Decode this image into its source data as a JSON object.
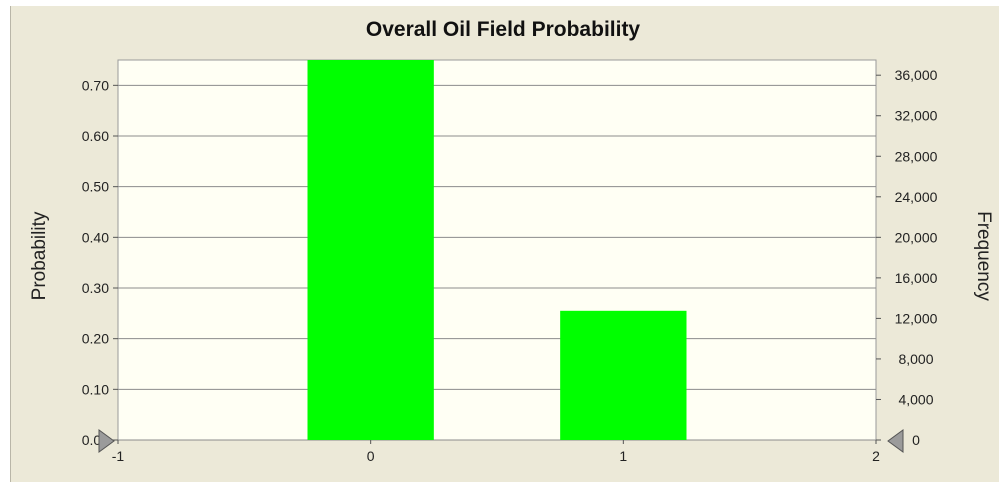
{
  "chart_data": {
    "type": "bar",
    "title": "Overall Oil Field Probability",
    "xlabel": "",
    "ylabel": "Probability",
    "y2label": "Frequency",
    "x": [
      0,
      1
    ],
    "values": [
      0.75,
      0.255
    ],
    "xlim": [
      -1,
      2
    ],
    "ylim": [
      0,
      0.75
    ],
    "y2lim": [
      0,
      37500
    ],
    "x_ticks": [
      "-1",
      "0",
      "1",
      "2"
    ],
    "y_ticks": [
      "0.00",
      "0.10",
      "0.20",
      "0.30",
      "0.40",
      "0.50",
      "0.60",
      "0.70"
    ],
    "y2_ticks": [
      "0",
      "4,000",
      "8,000",
      "12,000",
      "16,000",
      "20,000",
      "24,000",
      "28,000",
      "32,000",
      "36,000"
    ],
    "bar_color": "#00ff00",
    "plot_background": "#fffff4",
    "frame_background": "#ece9d8",
    "gridlines": true,
    "legend": "none",
    "markers": [
      "left-triangle-marker-icon",
      "right-triangle-marker-icon"
    ]
  }
}
